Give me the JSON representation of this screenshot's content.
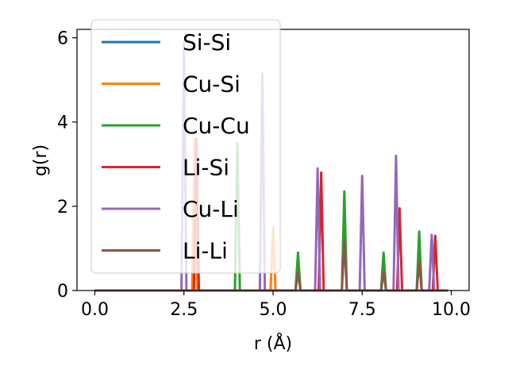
{
  "chart_data": {
    "type": "line",
    "xlabel": "r (Å)",
    "ylabel": "g(r)",
    "xlim": [
      -0.5,
      10.5
    ],
    "ylim": [
      0,
      6.2
    ],
    "xticks": [
      0.0,
      2.5,
      5.0,
      7.5,
      10.0
    ],
    "xtick_labels": [
      "0.0",
      "2.5",
      "5.0",
      "7.5",
      "10.0"
    ],
    "yticks": [
      0,
      2,
      4,
      6
    ],
    "ytick_labels": [
      "0",
      "2",
      "4",
      "6"
    ],
    "x_range": [
      0,
      9.9
    ],
    "peak_half_width": 0.07,
    "legend_position": "upper-left",
    "grid": false,
    "series": [
      {
        "name": "Si-Si",
        "color": "#1f77b4",
        "peaks": []
      },
      {
        "name": "Cu-Si",
        "color": "#ff7f0e",
        "peaks": [
          [
            2.8,
            3.6
          ],
          [
            5.0,
            1.5
          ]
        ]
      },
      {
        "name": "Cu-Cu",
        "color": "#2ca02c",
        "peaks": [
          [
            4.0,
            3.5
          ],
          [
            5.7,
            0.9
          ],
          [
            7.0,
            2.35
          ],
          [
            8.1,
            0.9
          ],
          [
            9.1,
            1.4
          ]
        ]
      },
      {
        "name": "Li-Si",
        "color": "#d62728",
        "peaks": [
          [
            2.85,
            3.6
          ],
          [
            6.35,
            2.8
          ],
          [
            8.55,
            1.95
          ],
          [
            9.55,
            1.3
          ]
        ]
      },
      {
        "name": "Cu-Li",
        "color": "#9467bd",
        "peaks": [
          [
            2.5,
            5.9
          ],
          [
            4.7,
            5.15
          ],
          [
            6.25,
            2.9
          ],
          [
            7.5,
            2.72
          ],
          [
            8.45,
            3.2
          ],
          [
            9.45,
            1.32
          ]
        ]
      },
      {
        "name": "Li-Li",
        "color": "#8c564b",
        "peaks": [
          [
            5.7,
            0.45
          ],
          [
            7.0,
            1.18
          ],
          [
            8.1,
            0.45
          ],
          [
            9.1,
            0.7
          ]
        ]
      }
    ]
  }
}
